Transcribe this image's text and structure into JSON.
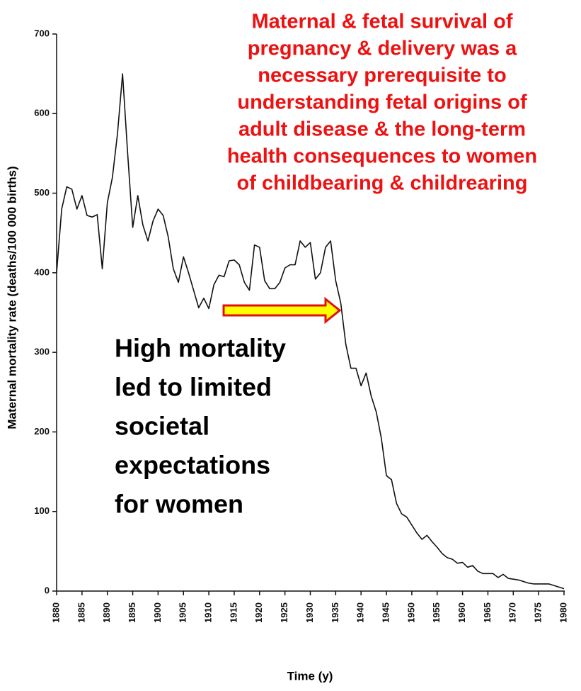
{
  "chart_data": {
    "type": "line",
    "y_label": "Maternal mortality rate (deaths/100 000 births)",
    "x_label": "Time (y)",
    "annotations": {
      "red_text": [
        "Maternal & fetal survival of",
        "pregnancy & delivery was a",
        "necessary prerequisite to",
        "understanding fetal origins of",
        "adult disease & the long-term",
        "health consequences to women",
        "of childbearing & childrearing"
      ],
      "black_text": [
        "High mortality",
        "led to limited",
        "societal",
        "expectations",
        "for women"
      ]
    },
    "x": [
      1880,
      1881,
      1882,
      1883,
      1884,
      1885,
      1886,
      1887,
      1888,
      1889,
      1890,
      1891,
      1892,
      1893,
      1894,
      1895,
      1896,
      1897,
      1898,
      1899,
      1900,
      1901,
      1902,
      1903,
      1904,
      1905,
      1906,
      1907,
      1908,
      1909,
      1910,
      1911,
      1912,
      1913,
      1914,
      1915,
      1916,
      1917,
      1918,
      1919,
      1920,
      1921,
      1922,
      1923,
      1924,
      1925,
      1926,
      1927,
      1928,
      1929,
      1930,
      1931,
      1932,
      1933,
      1934,
      1935,
      1936,
      1937,
      1938,
      1939,
      1940,
      1941,
      1942,
      1943,
      1944,
      1945,
      1946,
      1947,
      1948,
      1949,
      1950,
      1951,
      1952,
      1953,
      1954,
      1955,
      1956,
      1957,
      1958,
      1959,
      1960,
      1961,
      1962,
      1963,
      1964,
      1965,
      1966,
      1967,
      1968,
      1969,
      1970,
      1971,
      1972,
      1973,
      1974,
      1975,
      1976,
      1977,
      1978,
      1979,
      1980
    ],
    "series": [
      {
        "color": "#111111",
        "values": [
          400,
          480,
          508,
          505,
          480,
          497,
          472,
          470,
          473,
          405,
          488,
          520,
          575,
          650,
          550,
          457,
          497,
          460,
          440,
          465,
          480,
          472,
          445,
          405,
          388,
          420,
          400,
          378,
          356,
          368,
          355,
          385,
          397,
          395,
          415,
          416,
          410,
          388,
          378,
          435,
          432,
          390,
          380,
          380,
          388,
          406,
          410,
          410,
          440,
          432,
          438,
          392,
          400,
          432,
          440,
          390,
          362,
          310,
          280,
          280,
          258,
          274,
          245,
          225,
          192,
          145,
          140,
          110,
          97,
          93,
          83,
          73,
          65,
          70,
          62,
          55,
          47,
          42,
          40,
          35,
          36,
          30,
          32,
          25,
          22,
          22,
          22,
          17,
          21,
          16,
          15,
          14,
          12,
          10,
          9,
          9,
          9,
          9,
          7,
          5,
          3
        ]
      }
    ],
    "xlim": [
      1880,
      1980
    ],
    "xticks": [
      1880,
      1885,
      1890,
      1895,
      1900,
      1905,
      1910,
      1915,
      1920,
      1925,
      1930,
      1935,
      1940,
      1945,
      1950,
      1955,
      1960,
      1965,
      1970,
      1975,
      1980
    ],
    "ylim": [
      0,
      700
    ],
    "yticks": [
      0,
      100,
      200,
      300,
      400,
      500,
      600,
      700
    ]
  }
}
